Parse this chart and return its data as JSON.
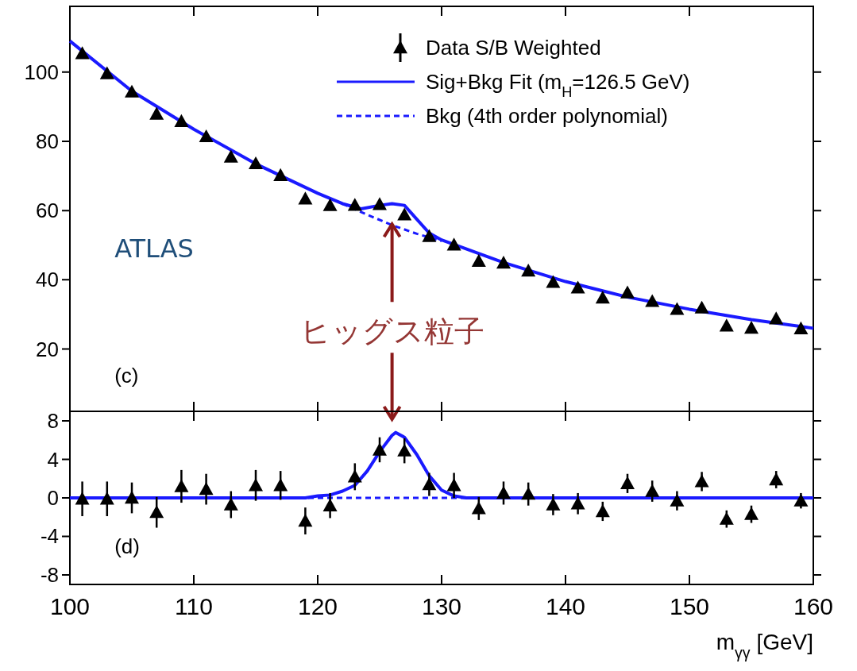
{
  "chart_data": [
    {
      "type": "scatter",
      "xlim": [
        100,
        160
      ],
      "xticks": [
        100,
        110,
        120,
        130,
        140,
        150,
        160
      ],
      "ylim": [
        2,
        119
      ],
      "yticks": [
        20,
        40,
        60,
        80,
        100
      ],
      "tick_labels": "y",
      "legend": "top right",
      "annotations": [
        "ATLAS",
        "(c)",
        {
          "text": "ヒッグス粒子",
          "x": 126,
          "y": 57
        }
      ],
      "series": [
        {
          "name": "Data S/B Weighted",
          "marker": "triangle",
          "color": "#000000",
          "x": [
            101,
            103,
            105,
            107,
            109,
            111,
            113,
            115,
            117,
            119,
            121,
            123,
            125,
            127,
            129,
            131,
            133,
            135,
            137,
            139,
            141,
            143,
            145,
            147,
            149,
            151,
            153,
            155,
            157,
            159
          ],
          "values": [
            105.4,
            99.6,
            94.3,
            87.9,
            85.8,
            81.4,
            75.5,
            73.6,
            70.2,
            63.4,
            61.5,
            61.6,
            61.8,
            58.8,
            52.6,
            50.1,
            45.4,
            44.9,
            42.6,
            39.3,
            37.7,
            34.8,
            36.3,
            33.8,
            31.5,
            31.9,
            26.7,
            26.1,
            28.8,
            25.9
          ]
        },
        {
          "name": "Sig+Bkg Fit  (m$_{H}$=126.5 GeV)",
          "type": "line",
          "line_style": "solid",
          "color": "#1a1aff",
          "x": [
            100,
            105,
            110,
            115,
            120,
            122,
            123.5,
            125,
            126,
            127,
            128,
            129,
            130,
            135,
            140,
            145,
            150,
            155,
            160
          ],
          "values": [
            109,
            94.5,
            83.5,
            73.5,
            65,
            62,
            60.5,
            61.5,
            62,
            61.5,
            57.5,
            53.5,
            51.5,
            45,
            39.5,
            35,
            31.5,
            28.5,
            26
          ]
        },
        {
          "name": "Bkg (4th order polynomial)",
          "type": "line",
          "line_style": "dashed",
          "color": "#1a1aff",
          "x": [
            122,
            124,
            126,
            128,
            130
          ],
          "values": [
            62,
            58.8,
            55.8,
            53.3,
            51.2
          ]
        }
      ]
    },
    {
      "type": "scatter",
      "xlim": [
        100,
        160
      ],
      "xticks": [
        100,
        110,
        120,
        130,
        140,
        150,
        160
      ],
      "ylim": [
        -9,
        9
      ],
      "yticks": [
        -8,
        -4,
        0,
        4,
        8
      ],
      "xlabel": "m$_{γγ}$ [GeV]",
      "annotations": [
        "(d)"
      ],
      "series": [
        {
          "marker": "triangle",
          "color": "#000000",
          "x": [
            101,
            103,
            105,
            107,
            109,
            111,
            113,
            115,
            117,
            119,
            121,
            123,
            125,
            127,
            129,
            131,
            133,
            135,
            137,
            139,
            141,
            143,
            145,
            147,
            149,
            151,
            153,
            155,
            157,
            159
          ],
          "values": [
            -0.1,
            -0.1,
            0,
            -1.5,
            1.2,
            0.9,
            -0.7,
            1.3,
            1.3,
            -2.4,
            -0.8,
            2.2,
            5,
            4.9,
            1.4,
            1.3,
            -1.1,
            0.5,
            0.4,
            -0.7,
            -0.6,
            -1.4,
            1.5,
            0.7,
            -0.3,
            1.7,
            -2.2,
            -1.7,
            1.9,
            -0.3
          ],
          "errors": [
            1.8,
            1.8,
            1.6,
            1.6,
            1.7,
            1.6,
            1.4,
            1.6,
            1.5,
            1.4,
            1.3,
            1.4,
            1.3,
            1.3,
            1.2,
            1.3,
            1.2,
            1.2,
            1.2,
            1.1,
            1.1,
            1,
            1,
            1.1,
            1,
            1,
            0.9,
            0.9,
            0.9,
            0.8
          ]
        },
        {
          "type": "line",
          "line_style": "solid",
          "color": "#1a1aff",
          "x": [
            100,
            119,
            120,
            121,
            122,
            123,
            124,
            125,
            126,
            126.3,
            127,
            128,
            129,
            130,
            131,
            132,
            160
          ],
          "values": [
            0,
            0,
            0.2,
            0.3,
            0.7,
            1.3,
            2.8,
            4.8,
            6.5,
            6.8,
            6.3,
            4.5,
            2.3,
            0.8,
            0.2,
            0,
            0
          ]
        },
        {
          "type": "line",
          "line_style": "dashed",
          "color": "#1a1aff",
          "x": [
            100,
            160
          ],
          "values": [
            0,
            0
          ]
        }
      ]
    }
  ]
}
